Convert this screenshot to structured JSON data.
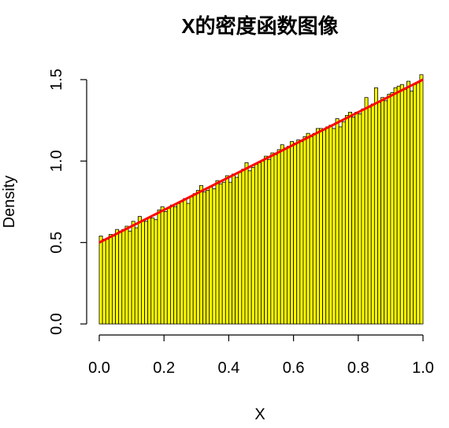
{
  "chart_data": {
    "type": "bar",
    "title": "X的密度函数图像",
    "xlabel": "X",
    "ylabel": "Density",
    "xlim": [
      0,
      1
    ],
    "ylim": [
      0,
      1.5
    ],
    "x_ticks": [
      "0.0",
      "0.2",
      "0.4",
      "0.6",
      "0.8",
      "1.0"
    ],
    "y_ticks": [
      "0.0",
      "0.5",
      "1.0",
      "1.5"
    ],
    "histogram": {
      "bin_width": 0.01,
      "bin_start": 0,
      "values": [
        0.54,
        0.52,
        0.52,
        0.55,
        0.54,
        0.58,
        0.57,
        0.58,
        0.6,
        0.57,
        0.63,
        0.59,
        0.66,
        0.63,
        0.63,
        0.65,
        0.65,
        0.64,
        0.7,
        0.72,
        0.69,
        0.71,
        0.73,
        0.72,
        0.74,
        0.75,
        0.77,
        0.74,
        0.78,
        0.8,
        0.82,
        0.85,
        0.81,
        0.82,
        0.84,
        0.83,
        0.88,
        0.86,
        0.87,
        0.91,
        0.87,
        0.92,
        0.9,
        0.93,
        0.95,
        0.99,
        0.94,
        0.96,
        0.98,
        0.99,
        1.0,
        1.03,
        1.01,
        1.05,
        1.04,
        1.07,
        1.1,
        1.08,
        1.09,
        1.12,
        1.11,
        1.13,
        1.12,
        1.15,
        1.17,
        1.15,
        1.17,
        1.2,
        1.2,
        1.19,
        1.21,
        1.22,
        1.2,
        1.26,
        1.21,
        1.24,
        1.28,
        1.3,
        1.27,
        1.3,
        1.29,
        1.32,
        1.39,
        1.33,
        1.35,
        1.45,
        1.36,
        1.39,
        1.37,
        1.41,
        1.42,
        1.45,
        1.46,
        1.47,
        1.44,
        1.49,
        1.43,
        1.47,
        1.48,
        1.53
      ]
    },
    "density_curve": {
      "formula": "0.5 + x",
      "points": [
        [
          0,
          0.5
        ],
        [
          1,
          1.5
        ]
      ],
      "color": "#ff0000"
    },
    "bar_color": "#ffff00",
    "grid": false,
    "legend": "none"
  }
}
